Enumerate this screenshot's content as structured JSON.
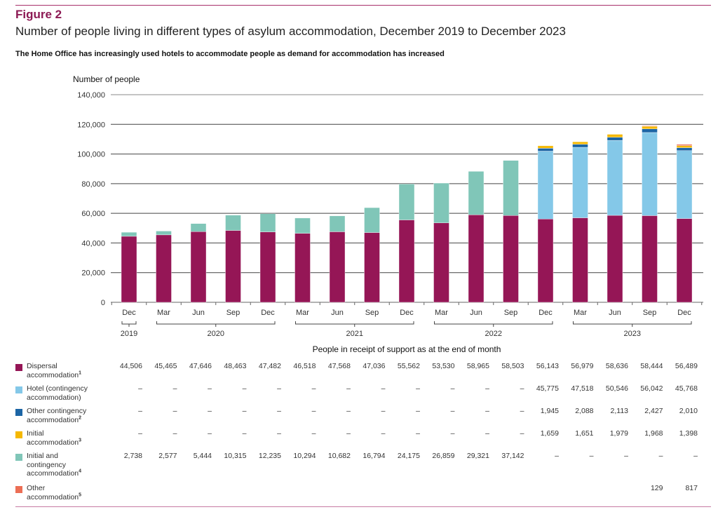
{
  "figure": {
    "label": "Figure 2",
    "title": "Number of people living in different types of asylum accommodation, December 2019 to December 2023",
    "subtitle": "The Home Office has increasingly used hotels to accommodate people as demand for accommodation has increased",
    "table_caption": "People in receipt of support as at the end of month"
  },
  "chart_data": {
    "type": "bar",
    "stacked": true,
    "title": "Number of people living in different types of asylum accommodation, December 2019 to December 2023",
    "xlabel": "",
    "ylabel": "Number of people",
    "ylim": [
      0,
      140000
    ],
    "yticks": [
      0,
      20000,
      40000,
      60000,
      80000,
      100000,
      120000,
      140000
    ],
    "ytick_labels": [
      "0",
      "20,000",
      "40,000",
      "60,000",
      "80,000",
      "100,000",
      "120,000",
      "140,000"
    ],
    "grid": true,
    "categories": [
      "Dec",
      "Mar",
      "Jun",
      "Sep",
      "Dec",
      "Mar",
      "Jun",
      "Sep",
      "Dec",
      "Mar",
      "Jun",
      "Sep",
      "Dec",
      "Mar",
      "Jun",
      "Sep",
      "Dec"
    ],
    "year_groups": [
      {
        "label": "2019",
        "start": 0,
        "end": 0
      },
      {
        "label": "2020",
        "start": 1,
        "end": 4
      },
      {
        "label": "2021",
        "start": 5,
        "end": 8
      },
      {
        "label": "2022",
        "start": 9,
        "end": 12
      },
      {
        "label": "2023",
        "start": 13,
        "end": 16
      }
    ],
    "series": [
      {
        "name": "Dispersal accommodation",
        "footnote": "1",
        "color": "#951656",
        "values": [
          44506,
          45465,
          47646,
          48463,
          47482,
          46518,
          47568,
          47036,
          55562,
          53530,
          58965,
          58503,
          56143,
          56979,
          58636,
          58444,
          56489
        ],
        "labels": [
          "44,506",
          "45,465",
          "47,646",
          "48,463",
          "47,482",
          "46,518",
          "47,568",
          "47,036",
          "55,562",
          "53,530",
          "58,965",
          "58,503",
          "56,143",
          "56,979",
          "58,636",
          "58,444",
          "56,489"
        ]
      },
      {
        "name": "Hotel (contingency accommodation)",
        "footnote": "",
        "color": "#84c8e8",
        "values": [
          0,
          0,
          0,
          0,
          0,
          0,
          0,
          0,
          0,
          0,
          0,
          0,
          45775,
          47518,
          50546,
          56042,
          45768
        ],
        "labels": [
          "–",
          "–",
          "–",
          "–",
          "–",
          "–",
          "–",
          "–",
          "–",
          "–",
          "–",
          "–",
          "45,775",
          "47,518",
          "50,546",
          "56,042",
          "45,768"
        ]
      },
      {
        "name": "Other contingency accommodation",
        "footnote": "2",
        "color": "#1c65a5",
        "values": [
          0,
          0,
          0,
          0,
          0,
          0,
          0,
          0,
          0,
          0,
          0,
          0,
          1945,
          2088,
          2113,
          2427,
          2010
        ],
        "labels": [
          "–",
          "–",
          "–",
          "–",
          "–",
          "–",
          "–",
          "–",
          "–",
          "–",
          "–",
          "–",
          "1,945",
          "2,088",
          "2,113",
          "2,427",
          "2,010"
        ]
      },
      {
        "name": "Initial accommodation",
        "footnote": "3",
        "color": "#f5b800",
        "values": [
          0,
          0,
          0,
          0,
          0,
          0,
          0,
          0,
          0,
          0,
          0,
          0,
          1659,
          1651,
          1979,
          1968,
          1398
        ],
        "labels": [
          "–",
          "–",
          "–",
          "–",
          "–",
          "–",
          "–",
          "–",
          "–",
          "–",
          "–",
          "–",
          "1,659",
          "1,651",
          "1,979",
          "1,968",
          "1,398"
        ]
      },
      {
        "name": "Initial and contingency accommodation",
        "footnote": "4",
        "color": "#80c6b8",
        "values": [
          2738,
          2577,
          5444,
          10315,
          12235,
          10294,
          10682,
          16794,
          24175,
          26859,
          29321,
          37142,
          0,
          0,
          0,
          0,
          0
        ],
        "labels": [
          "2,738",
          "2,577",
          "5,444",
          "10,315",
          "12,235",
          "10,294",
          "10,682",
          "16,794",
          "24,175",
          "26,859",
          "29,321",
          "37,142",
          "–",
          "–",
          "–",
          "–",
          "–"
        ]
      },
      {
        "name": "Other accommodation",
        "footnote": "5",
        "color": "#ec6e55",
        "values": [
          0,
          0,
          0,
          0,
          0,
          0,
          0,
          0,
          0,
          0,
          0,
          0,
          0,
          0,
          0,
          129,
          817
        ],
        "labels": [
          "",
          "",
          "",
          "",
          "",
          "",
          "",
          "",
          "",
          "",
          "",
          "",
          "",
          "",
          "",
          "129",
          "817"
        ]
      }
    ],
    "stack_order": [
      0,
      4,
      1,
      2,
      3,
      5
    ],
    "legend_placement": "bottom-left (table rows)"
  },
  "table": {
    "rows": [
      {
        "label_lines": [
          "Dispersal",
          "accommodation"
        ],
        "footnote": "1"
      },
      {
        "label_lines": [
          "Hotel (contingency",
          "accommodation)"
        ],
        "footnote": ""
      },
      {
        "label_lines": [
          "Other contingency",
          "accommodation"
        ],
        "footnote": "2"
      },
      {
        "label_lines": [
          "Initial",
          "accommodation"
        ],
        "footnote": "3"
      },
      {
        "label_lines": [
          "Initial and",
          "contingency",
          "accommodation"
        ],
        "footnote": "4"
      },
      {
        "label_lines": [
          "Other",
          "accommodation"
        ],
        "footnote": "5"
      }
    ]
  }
}
